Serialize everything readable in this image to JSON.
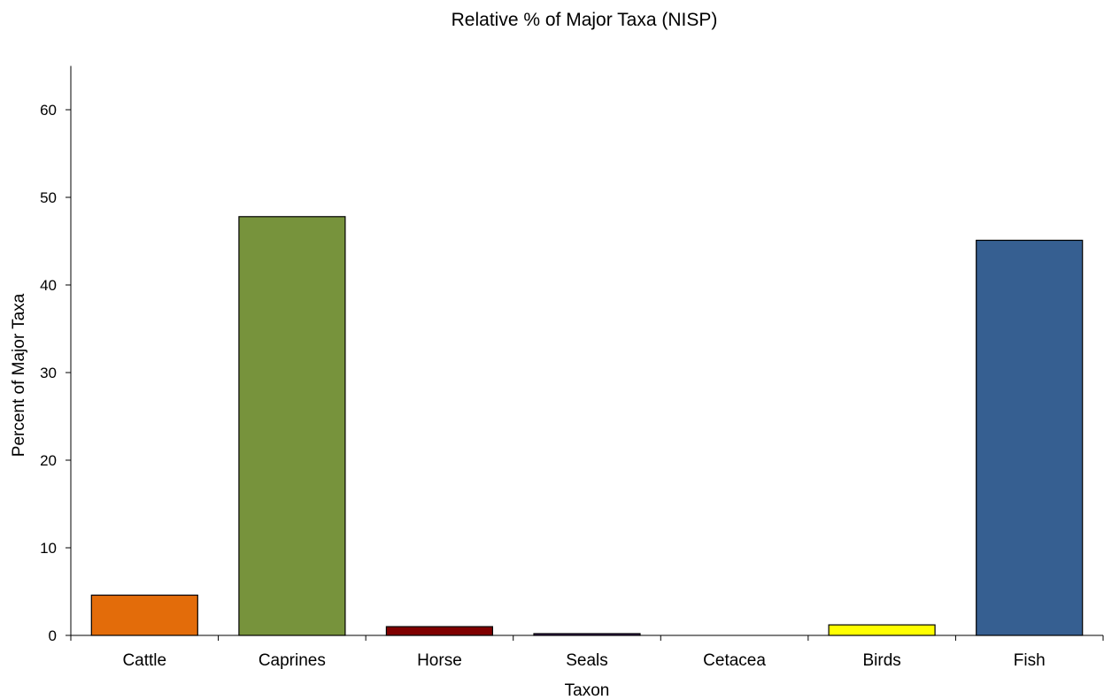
{
  "chart_data": {
    "type": "bar",
    "title": "Relative % of Major Taxa (NISP)",
    "xlabel": "Taxon",
    "ylabel": "Percent of Major Taxa",
    "categories": [
      "Cattle",
      "Caprines",
      "Horse",
      "Seals",
      "Cetacea",
      "Birds",
      "Fish"
    ],
    "values": [
      4.6,
      47.8,
      1.0,
      0.2,
      0,
      1.2,
      45.1
    ],
    "colors": [
      "#e36c0a",
      "#77933c",
      "#7f0000",
      "#3f1f5f",
      "#cccccc",
      "#ffff00",
      "#365f91"
    ],
    "ylim": [
      0,
      65
    ],
    "yticks": [
      0,
      10,
      20,
      30,
      40,
      50,
      60
    ],
    "grid": false,
    "legend": "none"
  }
}
